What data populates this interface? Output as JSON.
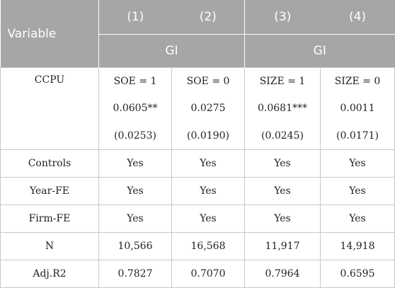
{
  "header": {
    "variable_label": "Variable",
    "columns": [
      "(1)",
      "(2)",
      "(3)",
      "(4)"
    ],
    "groups": [
      "GI",
      "GI"
    ]
  },
  "ccpu": {
    "label": "CCPU",
    "subsets": [
      "SOE = 1",
      "SOE = 0",
      "SIZE = 1",
      "SIZE = 0"
    ],
    "coefficients": [
      "0.0605**",
      "0.0275",
      "0.0681***",
      "0.0011"
    ],
    "std_errors": [
      "(0.0253)",
      "(0.0190)",
      "(0.0245)",
      "(0.0171)"
    ]
  },
  "rows": [
    {
      "label": "Controls",
      "values": [
        "Yes",
        "Yes",
        "Yes",
        "Yes"
      ]
    },
    {
      "label": "Year-FE",
      "values": [
        "Yes",
        "Yes",
        "Yes",
        "Yes"
      ]
    },
    {
      "label": "Firm-FE",
      "values": [
        "Yes",
        "Yes",
        "Yes",
        "Yes"
      ]
    },
    {
      "label": "N",
      "values": [
        "10,566",
        "16,568",
        "11,917",
        "14,918"
      ]
    },
    {
      "label": "Adj.R2",
      "values": [
        "0.7827",
        "0.7070",
        "0.7964",
        "0.6595"
      ]
    }
  ],
  "colors": {
    "header_background": "#a6a6a6",
    "header_text": "#ffffff",
    "grid_line": "#c8c8c8"
  }
}
